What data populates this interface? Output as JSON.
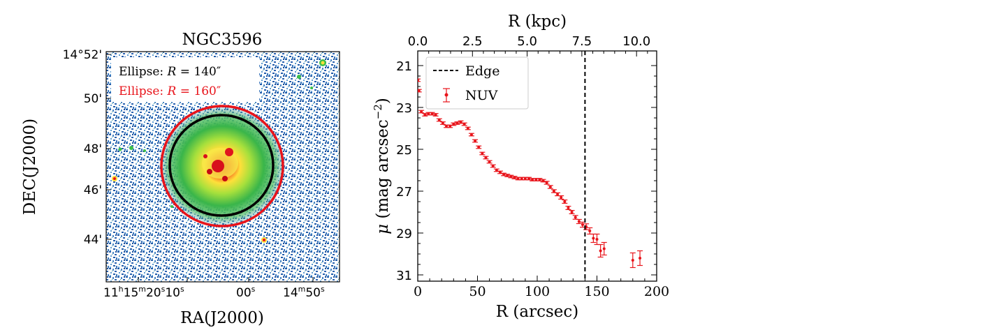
{
  "left_panel": {
    "title": "NGC3596",
    "xlabel": "RA(J2000)",
    "ylabel": "DEC(J2000)",
    "dec_ticks": [
      "14°52'",
      "50'",
      "48'",
      "46'",
      "44'"
    ],
    "ra_ticks": {
      "h": "11",
      "m": "15",
      "s1": "20",
      "s2": "10",
      "s3": "00",
      "d": "14",
      "m2": "50",
      "sup_h": "h",
      "sup_m": "m",
      "sup_s": "s"
    },
    "legend": {
      "black_prefix": "Ellipse: ",
      "black_var": "R",
      "black_value": " = 140″",
      "red_prefix": "Ellipse: ",
      "red_var": "R",
      "red_value": " = 160″"
    },
    "colors": {
      "black_ellipse": "#000000",
      "red_ellipse": "#e8141b"
    }
  },
  "chart_data": {
    "type": "scatter",
    "xlabel": "R (arcsec)",
    "ylabel": "μ (mag arcsec⁻²)",
    "top_xlabel": "R (kpc)",
    "xlim": [
      0,
      200
    ],
    "ylim": [
      31.3,
      20.3
    ],
    "x_ticks": [
      0,
      50,
      100,
      150,
      200
    ],
    "y_ticks": [
      21,
      23,
      25,
      27,
      29,
      31
    ],
    "top_ticks": [
      "0.0",
      "2.5",
      "5.0",
      "7.5",
      "10.0"
    ],
    "top_tick_kpc": [
      0,
      2.5,
      5.0,
      7.5,
      10.0
    ],
    "kpc_per_arcsec": 0.0546,
    "edge_x": 140,
    "legend": {
      "edge": "Edge",
      "nuv": "NUV"
    },
    "series": [
      {
        "name": "NUV",
        "color": "#e8141b",
        "points": [
          [
            0,
            21.7,
            0.06
          ],
          [
            1,
            22.2,
            0.06
          ],
          [
            3,
            23.2,
            0.06
          ],
          [
            6,
            23.35,
            0.06
          ],
          [
            9,
            23.3,
            0.06
          ],
          [
            12,
            23.3,
            0.06
          ],
          [
            15,
            23.35,
            0.06
          ],
          [
            18,
            23.6,
            0.06
          ],
          [
            21,
            23.75,
            0.06
          ],
          [
            24,
            23.9,
            0.06
          ],
          [
            27,
            23.9,
            0.06
          ],
          [
            30,
            23.8,
            0.06
          ],
          [
            33,
            23.75,
            0.06
          ],
          [
            36,
            23.7,
            0.06
          ],
          [
            39,
            23.8,
            0.06
          ],
          [
            42,
            24.0,
            0.06
          ],
          [
            45,
            24.3,
            0.06
          ],
          [
            48,
            24.6,
            0.06
          ],
          [
            51,
            24.9,
            0.06
          ],
          [
            54,
            25.2,
            0.06
          ],
          [
            57,
            25.4,
            0.06
          ],
          [
            60,
            25.6,
            0.06
          ],
          [
            63,
            25.8,
            0.06
          ],
          [
            66,
            26.0,
            0.06
          ],
          [
            69,
            26.1,
            0.06
          ],
          [
            72,
            26.2,
            0.06
          ],
          [
            75,
            26.25,
            0.06
          ],
          [
            78,
            26.3,
            0.06
          ],
          [
            81,
            26.35,
            0.06
          ],
          [
            84,
            26.4,
            0.06
          ],
          [
            87,
            26.4,
            0.06
          ],
          [
            90,
            26.4,
            0.06
          ],
          [
            93,
            26.4,
            0.06
          ],
          [
            96,
            26.45,
            0.06
          ],
          [
            99,
            26.45,
            0.06
          ],
          [
            102,
            26.45,
            0.06
          ],
          [
            105,
            26.5,
            0.06
          ],
          [
            108,
            26.6,
            0.07
          ],
          [
            111,
            26.8,
            0.07
          ],
          [
            114,
            27.0,
            0.07
          ],
          [
            117,
            27.15,
            0.07
          ],
          [
            120,
            27.3,
            0.08
          ],
          [
            123,
            27.5,
            0.08
          ],
          [
            126,
            27.8,
            0.08
          ],
          [
            129,
            28.0,
            0.08
          ],
          [
            132,
            28.25,
            0.09
          ],
          [
            135,
            28.45,
            0.1
          ],
          [
            138,
            28.6,
            0.12
          ],
          [
            141,
            28.7,
            0.14
          ],
          [
            144,
            28.9,
            0.15
          ],
          [
            147,
            29.25,
            0.2
          ],
          [
            150,
            29.3,
            0.25
          ],
          [
            153,
            29.85,
            0.3
          ],
          [
            156,
            29.75,
            0.3
          ],
          [
            180,
            30.3,
            0.35
          ],
          [
            186,
            30.2,
            0.35
          ]
        ]
      }
    ]
  }
}
